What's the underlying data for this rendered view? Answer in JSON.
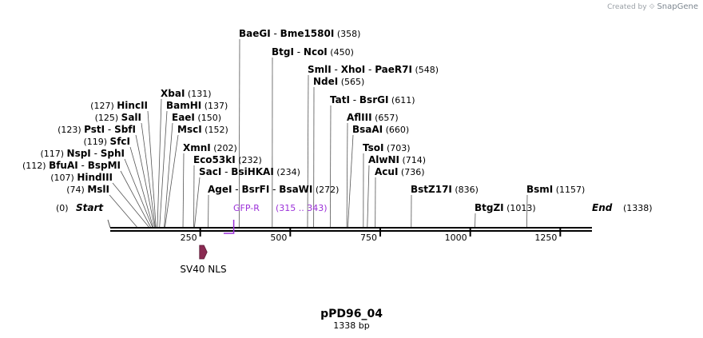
{
  "credit": {
    "text": "Created by",
    "brand": "SnapGene"
  },
  "map": {
    "name": "pPD96_04",
    "length_label": "1338 bp",
    "length": 1338,
    "start": {
      "label": "Start",
      "pos": "(0)"
    },
    "end": {
      "label": "End",
      "pos": "(1338)"
    },
    "ruler_ticks": [
      {
        "value": 250,
        "label": "250"
      },
      {
        "value": 500,
        "label": "500"
      },
      {
        "value": 750,
        "label": "750"
      },
      {
        "value": 1000,
        "label": "1000"
      },
      {
        "value": 1250,
        "label": "1250"
      }
    ]
  },
  "sites_right": [
    {
      "names": [
        "BaeGI",
        "Bme1580I"
      ],
      "pos": "(358)",
      "site": 358
    },
    {
      "names": [
        "BtgI",
        "NcoI"
      ],
      "pos": "(450)",
      "site": 450
    },
    {
      "names": [
        "SmlI",
        "XhoI",
        "PaeR7I"
      ],
      "pos": "(548)",
      "site": 548
    },
    {
      "names": [
        "NdeI"
      ],
      "pos": "(565)",
      "site": 565
    },
    {
      "names": [
        "TatI",
        "BsrGI"
      ],
      "pos": "(611)",
      "site": 611
    },
    {
      "names": [
        "AflIII"
      ],
      "pos": "(657)",
      "site": 657
    },
    {
      "names": [
        "BsaAI"
      ],
      "pos": "(660)",
      "site": 660
    },
    {
      "names": [
        "XbaI"
      ],
      "pos": "(131)",
      "site": 131
    },
    {
      "names": [
        "BamHI"
      ],
      "pos": "(137)",
      "site": 137
    },
    {
      "names": [
        "EaeI"
      ],
      "pos": "(150)",
      "site": 150
    },
    {
      "names": [
        "MscI"
      ],
      "pos": "(152)",
      "site": 152
    },
    {
      "names": [
        "XmnI"
      ],
      "pos": "(202)",
      "site": 202
    },
    {
      "names": [
        "Eco53kI"
      ],
      "pos": "(232)",
      "site": 232
    },
    {
      "names": [
        "SacI",
        "BsiHKAI"
      ],
      "pos": "(234)",
      "site": 234
    },
    {
      "names": [
        "AgeI",
        "BsrFI",
        "BsaWI"
      ],
      "pos": "(272)",
      "site": 272
    },
    {
      "names": [
        "TsoI"
      ],
      "pos": "(703)",
      "site": 703
    },
    {
      "names": [
        "AlwNI"
      ],
      "pos": "(714)",
      "site": 714
    },
    {
      "names": [
        "AcuI"
      ],
      "pos": "(736)",
      "site": 736
    },
    {
      "names": [
        "BstZ17I"
      ],
      "pos": "(836)",
      "site": 836
    },
    {
      "names": [
        "BsmI"
      ],
      "pos": "(1157)",
      "site": 1157
    },
    {
      "names": [
        "BtgZI"
      ],
      "pos": "(1013)",
      "site": 1013
    }
  ],
  "sites_left": [
    {
      "names": [
        "HincII"
      ],
      "pos": "(127)",
      "site": 127
    },
    {
      "names": [
        "SalI"
      ],
      "pos": "(125)",
      "site": 125
    },
    {
      "names": [
        "PstI",
        "SbfI"
      ],
      "pos": "(123)",
      "site": 123
    },
    {
      "names": [
        "SfcI"
      ],
      "pos": "(119)",
      "site": 119
    },
    {
      "names": [
        "NspI",
        "SphI"
      ],
      "pos": "(117)",
      "site": 117
    },
    {
      "names": [
        "BfuAI",
        "BspMI"
      ],
      "pos": "(112)",
      "site": 112
    },
    {
      "names": [
        "HindIII"
      ],
      "pos": "(107)",
      "site": 107
    },
    {
      "names": [
        "MslI"
      ],
      "pos": "(74)",
      "site": 74
    }
  ],
  "primer": {
    "name": "GFP-R",
    "range": "(315 .. 343)",
    "start": 315,
    "end": 343
  },
  "feature": {
    "name": "SV40 NLS",
    "start": 248,
    "end": 269,
    "color": "#8a2a52"
  },
  "colors": {
    "primer": "#9b30d9",
    "feature": "#8a2a52",
    "backbone": "#000000"
  }
}
